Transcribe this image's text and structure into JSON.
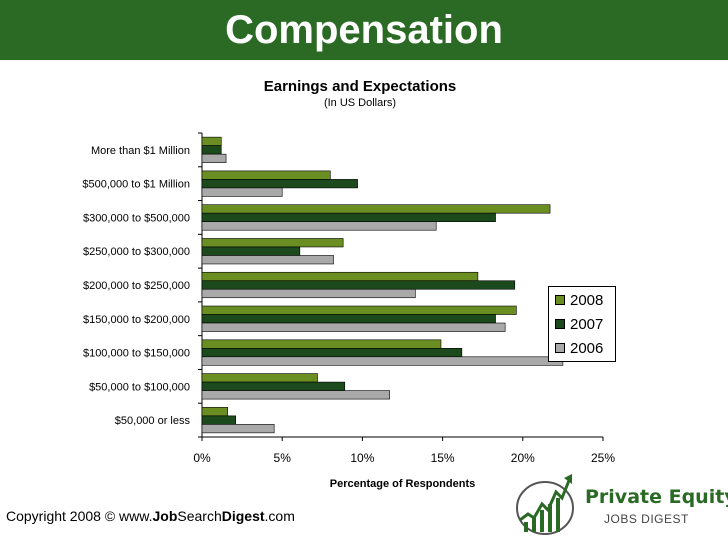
{
  "header": {
    "title": "Compensation"
  },
  "colors": {
    "header_bg": "#2a6a25",
    "s2008": "#6b8e23",
    "s2007": "#1c4a1c",
    "s2006": "#a9a9a9"
  },
  "chart_data": {
    "type": "bar",
    "orientation": "horizontal",
    "title": "Earnings and Expectations",
    "subtitle": "(In US Dollars)",
    "xlabel": "Percentage of Respondents",
    "ylabel": "",
    "xlim": [
      0,
      25
    ],
    "x_ticks": [
      "0%",
      "5%",
      "10%",
      "15%",
      "20%",
      "25%"
    ],
    "grid": false,
    "legend_position": "right",
    "categories": [
      "More than $1 Million",
      "$500,000 to $1 Million",
      "$300,000 to $500,000",
      "$250,000 to $300,000",
      "$200,000 to $250,000",
      "$150,000 to $200,000",
      "$100,000 to $150,000",
      "$50,000 to $100,000",
      "$50,000 or less"
    ],
    "series": [
      {
        "name": "2008",
        "values": [
          1.2,
          8.0,
          21.7,
          8.8,
          17.2,
          19.6,
          14.9,
          7.2,
          1.6
        ]
      },
      {
        "name": "2007",
        "values": [
          1.2,
          9.7,
          18.3,
          6.1,
          19.5,
          18.3,
          16.2,
          8.9,
          2.1
        ]
      },
      {
        "name": "2006",
        "values": [
          1.5,
          5.0,
          14.6,
          8.2,
          13.3,
          18.9,
          22.5,
          11.7,
          4.5
        ]
      }
    ]
  },
  "footer": {
    "copyright_prefix": "Copyright 2008 © www.",
    "brand_job": "Job",
    "brand_search": "Search",
    "brand_digest": "Digest",
    "domain_suffix": ".com"
  },
  "logo": {
    "line1": "Private Equity",
    "line2": "JOBS DIGEST"
  }
}
